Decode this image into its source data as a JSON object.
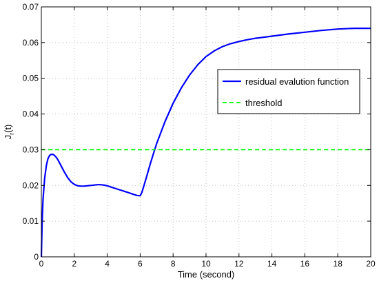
{
  "chart_data": {
    "type": "line",
    "title": "",
    "xlabel": "Time (second)",
    "ylabel": "J_r(t)",
    "xlim": [
      0,
      20
    ],
    "ylim": [
      0,
      0.07
    ],
    "xticks": [
      "0",
      "2",
      "4",
      "6",
      "8",
      "10",
      "12",
      "14",
      "16",
      "18",
      "20"
    ],
    "yticks": [
      "0",
      "0.01",
      "0.02",
      "0.03",
      "0.04",
      "0.05",
      "0.06",
      "0.07"
    ],
    "grid": true,
    "legend_position": "top-right",
    "series": [
      {
        "name": "residual evalution function",
        "color": "#0000ff",
        "style": "solid",
        "x": [
          0,
          0.05,
          0.1,
          0.2,
          0.3,
          0.4,
          0.5,
          0.6,
          0.7,
          0.8,
          0.9,
          1.0,
          1.2,
          1.4,
          1.6,
          1.8,
          2.0,
          2.2,
          2.4,
          2.6,
          2.8,
          3.0,
          3.2,
          3.4,
          3.6,
          3.8,
          4.0,
          4.2,
          4.4,
          4.6,
          4.8,
          5.0,
          5.2,
          5.4,
          5.6,
          5.8,
          6.0,
          6.1,
          6.2,
          6.4,
          6.6,
          6.8,
          7.0,
          7.5,
          8.0,
          8.5,
          9.0,
          9.5,
          10.0,
          10.5,
          11.0,
          11.5,
          12.0,
          12.5,
          13.0,
          13.5,
          14.0,
          15.0,
          16.0,
          17.0,
          18.0,
          19.0,
          20.0
        ],
        "y": [
          0,
          0.01,
          0.016,
          0.022,
          0.0255,
          0.0275,
          0.0284,
          0.0287,
          0.0287,
          0.0284,
          0.0279,
          0.0272,
          0.0255,
          0.0237,
          0.0222,
          0.021,
          0.0203,
          0.0199,
          0.0198,
          0.0198,
          0.0199,
          0.02,
          0.0201,
          0.0202,
          0.0202,
          0.0201,
          0.0199,
          0.0196,
          0.0193,
          0.019,
          0.0187,
          0.0184,
          0.0181,
          0.0178,
          0.0175,
          0.0172,
          0.0171,
          0.018,
          0.0195,
          0.0226,
          0.0258,
          0.0288,
          0.0317,
          0.0378,
          0.043,
          0.0473,
          0.0509,
          0.0538,
          0.0561,
          0.0577,
          0.0589,
          0.0597,
          0.0603,
          0.0608,
          0.0612,
          0.0615,
          0.0618,
          0.0624,
          0.0629,
          0.0634,
          0.0638,
          0.064,
          0.064
        ]
      },
      {
        "name": "threshold",
        "color": "#00ff00",
        "style": "dashed",
        "x": [
          0,
          20
        ],
        "y": [
          0.03,
          0.03
        ]
      }
    ]
  }
}
